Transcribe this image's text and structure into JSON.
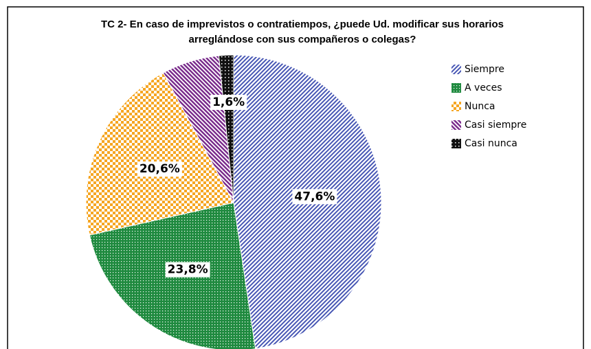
{
  "chart_data": {
    "type": "pie",
    "title": [
      "TC 2- En caso de imprevistos o contratiempos, ¿puede Ud. modificar sus horarios",
      "arreglándose con sus compañeros o colegas?"
    ],
    "categories": [
      "Siempre",
      "A veces",
      "Nunca",
      "Casi siempre",
      "Casi nunca"
    ],
    "values": [
      47.6,
      23.8,
      20.6,
      6.3,
      1.6
    ],
    "value_labels": [
      "47,6%",
      "23,8%",
      "20,6%",
      null,
      "1,6%"
    ],
    "colors": [
      "#4656b4",
      "#1f8a3f",
      "#f5a623",
      "#7a2c8c",
      "#111111"
    ],
    "legend": "right"
  }
}
